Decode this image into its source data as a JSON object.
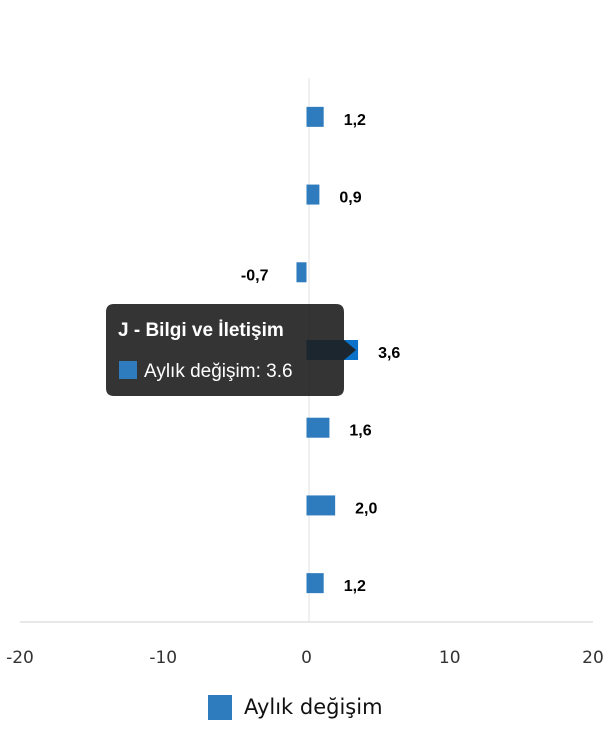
{
  "chart_data": {
    "type": "bar",
    "orientation": "horizontal",
    "series": [
      {
        "name": "Aylık değişim",
        "values": [
          1.2,
          0.9,
          -0.7,
          3.6,
          1.6,
          2.0,
          1.2
        ],
        "labels": [
          "1,2",
          "0,9",
          "-0,7",
          "3,6",
          "1,6",
          "2,0",
          "1,2"
        ]
      }
    ],
    "xlim": [
      -20,
      20
    ],
    "xticks": [
      "-20",
      "-10",
      "0",
      "10",
      "20"
    ],
    "xtick_values": [
      -20,
      -10,
      0,
      10,
      20
    ],
    "legend": {
      "label": "Aylık değişim",
      "placement": "bottom"
    },
    "grid": false,
    "colors": {
      "bar": "#2e7bbd",
      "bar_hover": "#0a72c9"
    },
    "tooltip": {
      "title": "J - Bilgi ve İletişim",
      "text": "Aylık değişim: 3.6",
      "index": 3
    }
  }
}
